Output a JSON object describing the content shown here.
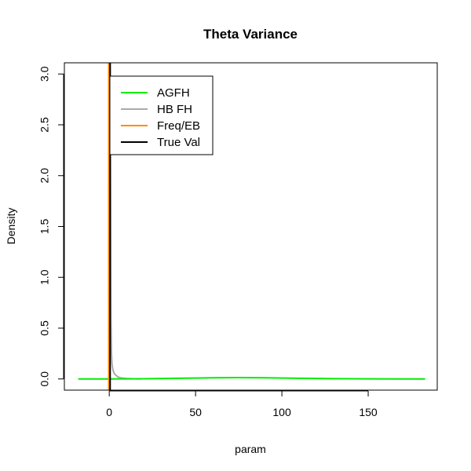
{
  "chart_data": {
    "type": "line",
    "title": "Theta Variance",
    "xlabel": "param",
    "ylabel": "Density",
    "xlim": [
      -26,
      190
    ],
    "ylim": [
      -0.11,
      3.11
    ],
    "xticks": [
      0,
      50,
      100,
      150
    ],
    "yticks": [
      0.0,
      0.5,
      1.0,
      1.5,
      2.0,
      2.5,
      3.0
    ],
    "xtick_labels": [
      "0",
      "50",
      "100",
      "150"
    ],
    "ytick_labels": [
      "0.0",
      "0.5",
      "1.0",
      "1.5",
      "2.0",
      "2.5",
      "3.0"
    ],
    "grid": false,
    "legend_position": "top-left",
    "legend": [
      {
        "label": "AGFH",
        "color": "#00ee00"
      },
      {
        "label": "HB FH",
        "color": "#aaaaaa"
      },
      {
        "label": "Freq/EB",
        "color": "#ff8c00"
      },
      {
        "label": "True Val",
        "color": "#000000"
      }
    ],
    "series": [
      {
        "name": "AGFH",
        "color": "#00ee00",
        "kind": "density",
        "x": [
          -18,
          0,
          20,
          40,
          60,
          75,
          90,
          110,
          130,
          150,
          170,
          183
        ],
        "y": [
          0.0,
          0.0,
          0.002,
          0.007,
          0.012,
          0.014,
          0.012,
          0.007,
          0.003,
          0.001,
          0.0,
          0.0
        ]
      },
      {
        "name": "HB FH",
        "color": "#aaaaaa",
        "kind": "density",
        "x": [
          0.0,
          0.2,
          0.5,
          0.8,
          1.0,
          1.3,
          1.6,
          2.0,
          2.5,
          3.0,
          4.0,
          5.0,
          7.0,
          10.0,
          14.0,
          18.0
        ],
        "y": [
          0.0,
          0.9,
          3.2,
          1.8,
          0.6,
          0.25,
          0.15,
          0.1,
          0.07,
          0.05,
          0.035,
          0.02,
          0.01,
          0.005,
          0.002,
          0.0
        ]
      },
      {
        "name": "Freq/EB",
        "color": "#ff8c00",
        "kind": "vline",
        "x": [
          -0.3
        ]
      },
      {
        "name": "True Val",
        "color": "#000000",
        "kind": "vline",
        "x": [
          0.5
        ]
      }
    ]
  }
}
